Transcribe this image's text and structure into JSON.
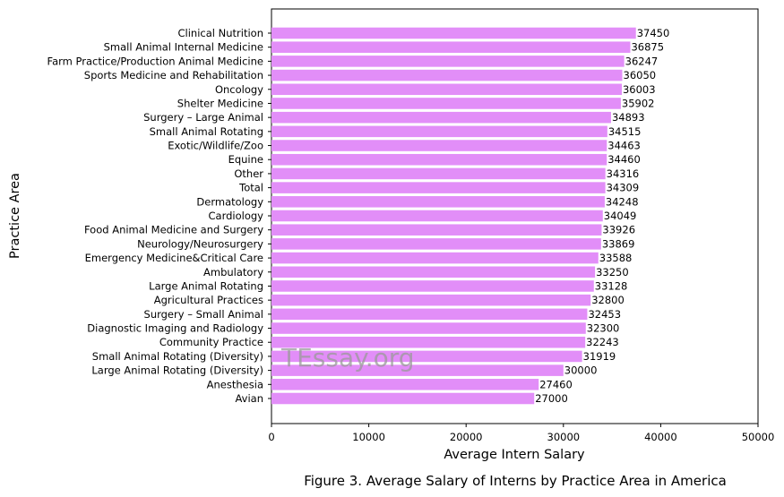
{
  "chart_data": {
    "type": "bar",
    "orientation": "horizontal",
    "categories": [
      "Clinical Nutrition",
      "Small Animal Internal Medicine",
      "Farm Practice/Production Animal Medicine",
      "Sports Medicine and Rehabilitation",
      "Oncology",
      "Shelter Medicine",
      "Surgery – Large Animal",
      "Small Animal Rotating",
      "Exotic/Wildlife/Zoo",
      "Equine ",
      "Other",
      "Total",
      "Dermatology",
      "Cardiology",
      "Food Animal Medicine and Surgery",
      "Neurology/Neurosurgery",
      "Emergency Medicine&Critical Care",
      "Ambulatory",
      "Large Animal Rotating",
      "Agricultural Practices",
      "Surgery – Small Animal",
      "Diagnostic Imaging and Radiology",
      "Community Practice",
      "Small Animal Rotating (Diversity)",
      "Large Animal Rotating (Diversity)",
      "Anesthesia",
      "Avian"
    ],
    "values": [
      37450,
      36875,
      36247,
      36050,
      36003,
      35902,
      34893,
      34515,
      34463,
      34460,
      34316,
      34309,
      34248,
      34049,
      33926,
      33869,
      33588,
      33250,
      33128,
      32800,
      32453,
      32300,
      32243,
      31919,
      30000,
      27460,
      27000
    ],
    "xlabel": "Average Intern Salary",
    "ylabel": "Practice Area",
    "xlim": [
      0,
      50000
    ],
    "xticks": [
      0,
      10000,
      20000,
      30000,
      40000,
      50000
    ],
    "caption": "Figure 3. Average Salary of Interns by Practice Area in America",
    "grid": false,
    "bar_color": "#e28ef8",
    "watermark": "TEssay.org"
  }
}
